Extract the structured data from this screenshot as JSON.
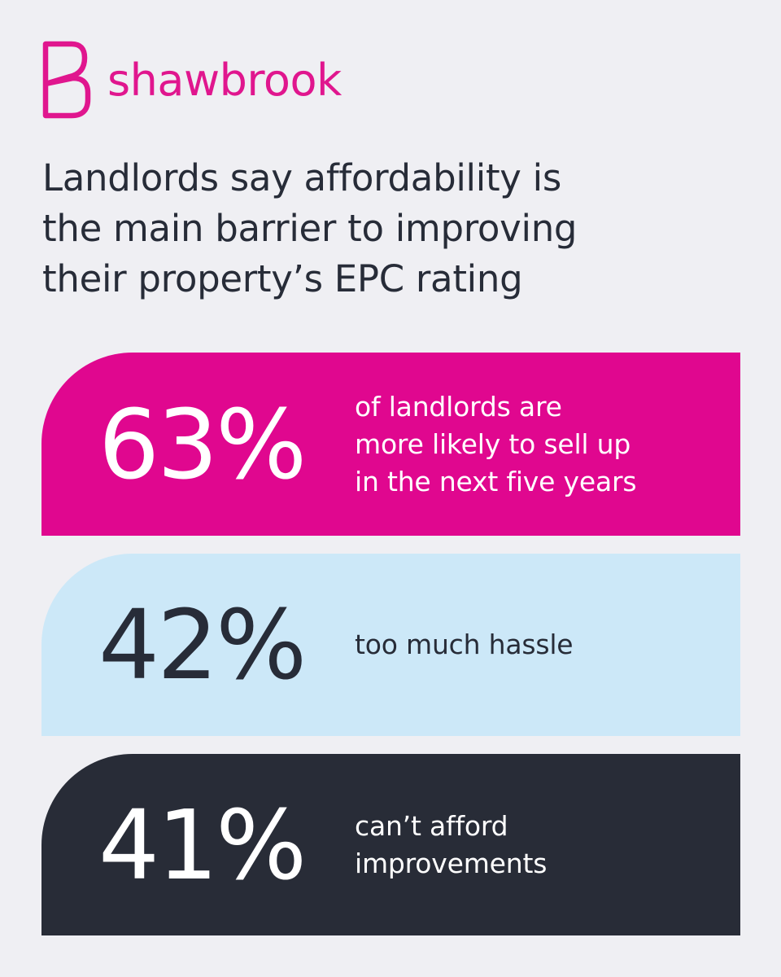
{
  "brand": {
    "name": "shawbrook",
    "logo_icon": "shawbrook-s-monogram-icon",
    "color": "#e0168e"
  },
  "headline": "Landlords say affordability is\nthe main barrier to improving\ntheir property’s EPC rating",
  "stats": [
    {
      "value": "63%",
      "label": "of landlords are\nmore likely to sell up\nin the next five years",
      "background": "#e0078f",
      "text_color": "#ffffff"
    },
    {
      "value": "42%",
      "label": "too much hassle",
      "background": "#cce8f8",
      "text_color": "#272c38"
    },
    {
      "value": "41%",
      "label": "can’t afford\nimprovements",
      "background": "#282c37",
      "text_color": "#ffffff"
    }
  ],
  "colors": {
    "page_background": "#efeff3",
    "headline_text": "#272c38"
  }
}
